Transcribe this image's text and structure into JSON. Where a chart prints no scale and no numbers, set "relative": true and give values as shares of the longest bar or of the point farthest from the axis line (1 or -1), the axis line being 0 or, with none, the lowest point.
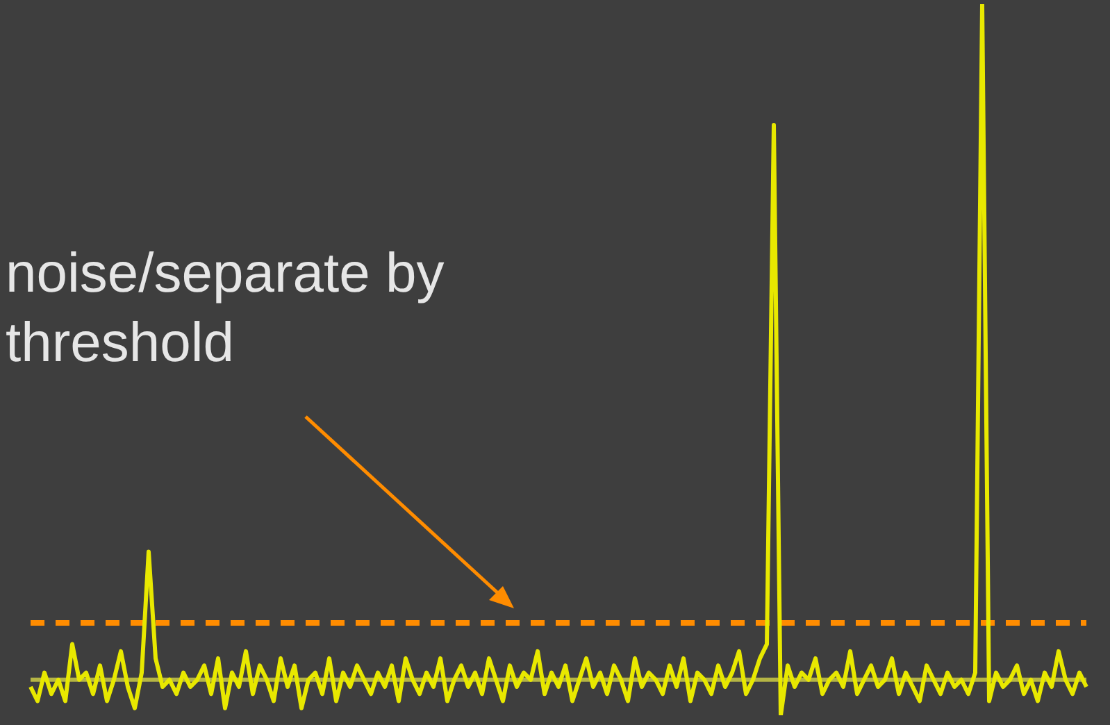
{
  "chart_data": {
    "type": "line",
    "relative": true,
    "categories": [
      null,
      null,
      null,
      null,
      null,
      null,
      null,
      null,
      null,
      null,
      null,
      null,
      null,
      null,
      null,
      null,
      null,
      null,
      null,
      null,
      null,
      null,
      null,
      null,
      null,
      null,
      null,
      null,
      null,
      null,
      null,
      null,
      null,
      null,
      null,
      null,
      null,
      null,
      null,
      null,
      null,
      null,
      null,
      null,
      null,
      null,
      null,
      null,
      null,
      null,
      null,
      null,
      null,
      null,
      null,
      null,
      null,
      null,
      null,
      null,
      null,
      null,
      null,
      null,
      null,
      null,
      null,
      null,
      null,
      null,
      null,
      null,
      null,
      null,
      null,
      null,
      null,
      null,
      null,
      null,
      null,
      null,
      null,
      null,
      null,
      null,
      null,
      null,
      null,
      null,
      null,
      null,
      null,
      null,
      null,
      null,
      null,
      null,
      null,
      null,
      null,
      null,
      null,
      null,
      null,
      null,
      null,
      null,
      null,
      null,
      null,
      null,
      null,
      null,
      null,
      null,
      null,
      null,
      null,
      null,
      null,
      null,
      null,
      null,
      null,
      null,
      null,
      null,
      null,
      null,
      null,
      null,
      null,
      null,
      null,
      null,
      null,
      null,
      null,
      null,
      null,
      null,
      null,
      null,
      null,
      null,
      null,
      null,
      null,
      null,
      null,
      null,
      null
    ],
    "values": [
      0.04,
      0.02,
      0.06,
      0.03,
      0.05,
      0.02,
      0.1,
      0.05,
      0.06,
      0.03,
      0.07,
      0.02,
      0.05,
      0.09,
      0.04,
      0.01,
      0.06,
      0.23,
      0.08,
      0.04,
      0.05,
      0.03,
      0.06,
      0.04,
      0.05,
      0.07,
      0.03,
      0.08,
      0.01,
      0.06,
      0.04,
      0.09,
      0.03,
      0.07,
      0.05,
      0.02,
      0.08,
      0.04,
      0.07,
      0.01,
      0.05,
      0.06,
      0.03,
      0.08,
      0.02,
      0.06,
      0.04,
      0.07,
      0.05,
      0.03,
      0.06,
      0.04,
      0.07,
      0.02,
      0.08,
      0.05,
      0.03,
      0.06,
      0.04,
      0.08,
      0.02,
      0.05,
      0.07,
      0.04,
      0.06,
      0.03,
      0.08,
      0.05,
      0.02,
      0.07,
      0.04,
      0.06,
      0.05,
      0.09,
      0.03,
      0.06,
      0.04,
      0.07,
      0.02,
      0.05,
      0.08,
      0.04,
      0.06,
      0.03,
      0.07,
      0.05,
      0.02,
      0.08,
      0.04,
      0.06,
      0.05,
      0.03,
      0.07,
      0.04,
      0.08,
      0.02,
      0.06,
      0.05,
      0.03,
      0.07,
      0.04,
      0.06,
      0.09,
      0.03,
      0.05,
      0.08,
      0.1,
      0.83,
      0,
      0.07,
      0.04,
      0.06,
      0.05,
      0.08,
      0.03,
      0.05,
      0.06,
      0.04,
      0.09,
      0.03,
      0.05,
      0.07,
      0.04,
      0.05,
      0.08,
      0.03,
      0.06,
      0.04,
      0.02,
      0.07,
      0.05,
      0.03,
      0.06,
      0.04,
      0.05,
      0.03,
      0.06,
      1,
      0.02,
      0.06,
      0.04,
      0.05,
      0.07,
      0.03,
      0.05,
      0.02,
      0.06,
      0.04,
      0.09,
      0.05,
      0.03,
      0.06,
      0.04
    ],
    "color": "#e8e800",
    "ref_lines": [
      {
        "axis": "y",
        "value": 0.13,
        "color": "#ff8c00",
        "line_style": "dashed"
      },
      {
        "axis": "y",
        "value": 0.05,
        "color": "#b5b545",
        "line_style": "solid"
      }
    ],
    "annotations": [
      "noise/separate by threshold"
    ]
  }
}
